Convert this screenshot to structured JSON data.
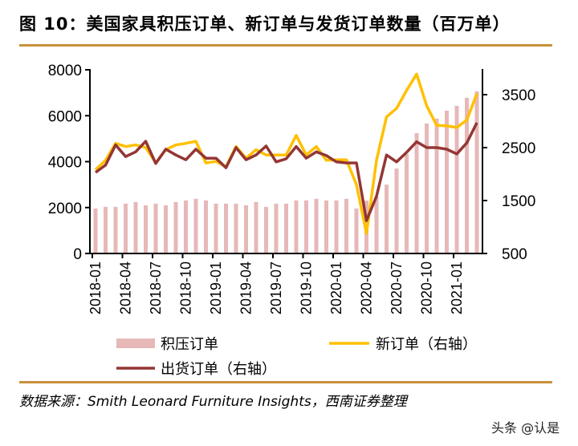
{
  "title": "图 10：美国家具积压订单、新订单与发货订单数量（百万单）",
  "source": "数据来源：Smith Leonard Furniture Insights，西南证券整理",
  "watermark": "头条 @认是",
  "colors": {
    "backlog": "#E6B8B7",
    "new_orders": "#FFC000",
    "shipments": "#943634",
    "rule": "#C8913A"
  },
  "chart_data": {
    "type": "bar+line",
    "title": "",
    "xlabel": "",
    "ylabel": "",
    "ylim_left": [
      0,
      8000
    ],
    "yticks_left": [
      0,
      2000,
      4000,
      6000,
      8000
    ],
    "ylim_right": [
      500,
      4000
    ],
    "yticks_right": [
      500,
      1500,
      2500,
      3500
    ],
    "grid": false,
    "legend_position": "bottom",
    "x": [
      "2018-01",
      "2018-02",
      "2018-03",
      "2018-04",
      "2018-05",
      "2018-06",
      "2018-07",
      "2018-08",
      "2018-09",
      "2018-10",
      "2018-11",
      "2018-12",
      "2019-01",
      "2019-02",
      "2019-03",
      "2019-04",
      "2019-05",
      "2019-06",
      "2019-07",
      "2019-08",
      "2019-09",
      "2019-10",
      "2019-11",
      "2019-12",
      "2020-01",
      "2020-02",
      "2020-03",
      "2020-04",
      "2020-05",
      "2020-06",
      "2020-07",
      "2020-08",
      "2020-09",
      "2020-10",
      "2020-11",
      "2020-12",
      "2021-01",
      "2021-02",
      "2021-03"
    ],
    "xtick_labels": [
      "2018-01",
      "2018-04",
      "2018-07",
      "2018-10",
      "2019-01",
      "2019-04",
      "2019-07",
      "2019-10",
      "2020-01",
      "2020-04",
      "2020-07",
      "2020-10",
      "2021-01"
    ],
    "series": [
      {
        "name": "积压订单",
        "type": "bar",
        "axis": "left",
        "values": [
          1960,
          2030,
          2030,
          2170,
          2240,
          2100,
          2170,
          2100,
          2240,
          2310,
          2380,
          2310,
          2170,
          2170,
          2170,
          2100,
          2240,
          2030,
          2170,
          2170,
          2310,
          2310,
          2380,
          2310,
          2310,
          2380,
          1960,
          2300,
          2480,
          3000,
          3700,
          4330,
          5240,
          5660,
          5870,
          6220,
          6430,
          6780,
          7060
        ]
      },
      {
        "name": "新订单（右轴）",
        "type": "line",
        "axis": "right",
        "values": [
          2080,
          2260,
          2580,
          2520,
          2550,
          2500,
          2210,
          2460,
          2550,
          2580,
          2620,
          2210,
          2240,
          2140,
          2520,
          2300,
          2460,
          2360,
          2360,
          2360,
          2730,
          2360,
          2520,
          2260,
          2270,
          2270,
          1800,
          880,
          2260,
          3080,
          3240,
          3580,
          3890,
          3290,
          2920,
          2910,
          2880,
          3020,
          3520
        ]
      },
      {
        "name": "出货订单（右轴）",
        "type": "line",
        "axis": "right",
        "values": [
          2030,
          2170,
          2550,
          2330,
          2420,
          2620,
          2200,
          2470,
          2360,
          2270,
          2470,
          2300,
          2300,
          2120,
          2500,
          2270,
          2360,
          2530,
          2230,
          2290,
          2520,
          2300,
          2420,
          2350,
          2230,
          2210,
          2210,
          1120,
          1580,
          2360,
          2230,
          2410,
          2610,
          2500,
          2500,
          2470,
          2380,
          2590,
          2970
        ]
      }
    ]
  }
}
